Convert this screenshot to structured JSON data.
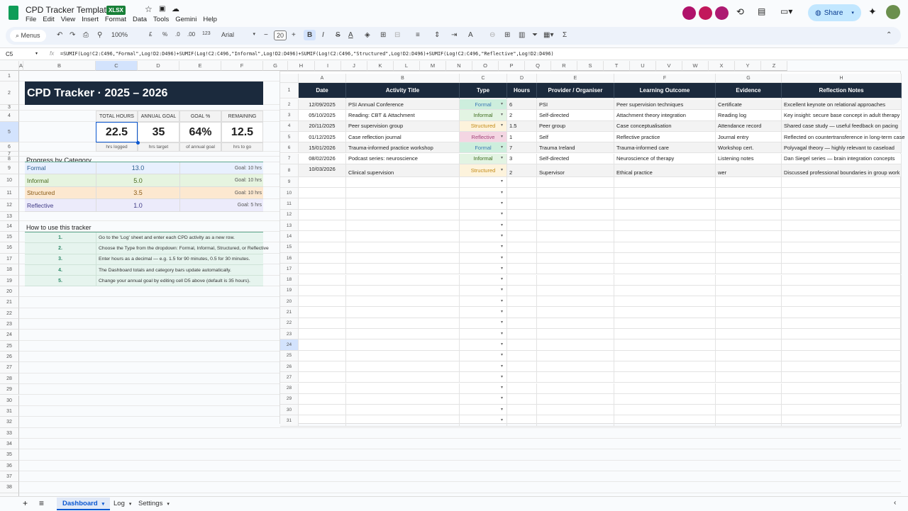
{
  "app": {
    "title": "CPD Tracker Template",
    "badge": "XLSX",
    "menus": [
      "File",
      "Edit",
      "View",
      "Insert",
      "Format",
      "Data",
      "Tools",
      "Gemini",
      "Help"
    ],
    "share": "Share"
  },
  "toolbar": {
    "menus": "Menus",
    "zoom": "100%",
    "currency": "£",
    "percent": "%",
    "dec_less": ".0",
    "dec_more": ".00",
    "format123": "123",
    "font": "Arial",
    "font_size": "20",
    "bold": "B",
    "italic": "I",
    "strike": "S",
    "text_color": "A",
    "sum": "Σ"
  },
  "formula": {
    "cell_ref": "C5",
    "fx": "fx",
    "text": "=SUMIF(Log!C2:C496,\"Formal\",Log!D2:D496)+SUMIF(Log!C2:C496,\"Informal\",Log!D2:D496)+SUMIF(Log!C2:C496,\"Structured\",Log!D2:D496)+SUMIF(Log!C2:C496,\"Reflective\",Log!D2:D496)"
  },
  "columns": [
    "A",
    "B",
    "C",
    "D",
    "E",
    "F",
    "G",
    "H",
    "I",
    "J",
    "K",
    "L",
    "M",
    "N",
    "O",
    "P",
    "Q",
    "R",
    "S",
    "T",
    "U",
    "V",
    "W",
    "X",
    "Y",
    "Z"
  ],
  "dashboard": {
    "title": "CPD Tracker  ·  2025 – 2026",
    "kpis": [
      {
        "head": "TOTAL HOURS",
        "value": "22.5",
        "sub": "hrs logged"
      },
      {
        "head": "ANNUAL GOAL",
        "value": "35",
        "sub": "hrs target"
      },
      {
        "head": "GOAL %",
        "value": "64%",
        "sub": "of annual goal"
      },
      {
        "head": "REMAINING",
        "value": "12.5",
        "sub": "hrs to go"
      }
    ],
    "progress_title": "Progress by Category",
    "categories": [
      {
        "name": "Formal",
        "hours": "13.0",
        "goal": "Goal: 10 hrs",
        "bg": "#e8f0fe",
        "fg": "#2a5d8f"
      },
      {
        "name": "Informal",
        "hours": "5.0",
        "goal": "Goal: 10 hrs",
        "bg": "#e6f4e0",
        "fg": "#4a6b1f"
      },
      {
        "name": "Structured",
        "hours": "3.5",
        "goal": "Goal: 10 hrs",
        "bg": "#fce8d0",
        "fg": "#8a5a14"
      },
      {
        "name": "Reflective",
        "hours": "1.0",
        "goal": "Goal: 5 hrs",
        "bg": "#ecebfb",
        "fg": "#3f3a86"
      }
    ],
    "howto_title": "How to use this tracker",
    "steps": [
      {
        "n": "1.",
        "t": "Go to the 'Log' sheet and enter each CPD activity as a new row."
      },
      {
        "n": "2.",
        "t": "Choose the Type from the dropdown: Formal, Informal, Structured, or Reflective"
      },
      {
        "n": "3.",
        "t": "Enter hours as a decimal — e.g. 1.5 for 90 minutes, 0.5 for 30 minutes."
      },
      {
        "n": "4.",
        "t": "The Dashboard totals and category bars update automatically."
      },
      {
        "n": "5.",
        "t": "Change your annual goal by editing cell D5 above (default is 35 hours)."
      }
    ]
  },
  "log": {
    "headers": [
      "Date",
      "Activity Title",
      "Type",
      "Hours",
      "Provider / Organiser",
      "Learning Outcome",
      "Evidence",
      "Reflection Notes"
    ],
    "type_colors": {
      "Formal": [
        "#cdeedd",
        "#3b78b5"
      ],
      "Informal": [
        "#e3f4e3",
        "#3d6b1c"
      ],
      "Structured": [
        "#fdf3dc",
        "#c48a14"
      ],
      "Reflective": [
        "#f4d6e3",
        "#a5457a"
      ]
    },
    "rows": [
      [
        "12/09/2025",
        "PSI Annual Conference",
        "Formal",
        "6",
        "PSI",
        "Peer supervision techniques",
        "Certificate",
        "Excellent keynote on relational approaches"
      ],
      [
        "05/10/2025",
        "Reading: CBT & Attachment",
        "Informal",
        "2",
        "Self-directed",
        "Attachment theory integration",
        "Reading log",
        "Key insight: secure base concept in adult therapy"
      ],
      [
        "20/11/2025",
        "Peer supervision group",
        "Structured",
        "1.5",
        "Peer group",
        "Case conceptualisation",
        "Attendance record",
        "Shared case study — useful feedback on pacing"
      ],
      [
        "01/12/2025",
        "Case reflection journal",
        "Reflective",
        "1",
        "Self",
        "Reflective practice",
        "Journal entry",
        "Reflected on countertransference in long-term case"
      ],
      [
        "15/01/2026",
        "Trauma-informed practice workshop",
        "Formal",
        "7",
        "Trauma Ireland",
        "Trauma-informed care",
        "Workshop cert.",
        "Polyvagal theory — highly relevant to caseload"
      ],
      [
        "08/02/2026",
        "Podcast series: neuroscience",
        "Informal",
        "3",
        "Self-directed",
        "Neuroscience of therapy",
        "Listening notes",
        "Dan Siegel series — brain integration concepts"
      ],
      [
        "10/03/2026",
        "Clinical supervision",
        "Structured",
        "2",
        "Supervisor",
        "Ethical practice",
        "wer",
        "Discussed professional boundaries in group work"
      ]
    ]
  },
  "sheets": [
    {
      "name": "Dashboard",
      "active": true
    },
    {
      "name": "Log"
    },
    {
      "name": "Settings"
    }
  ],
  "colors": {
    "header_dark": "#1b2a3d",
    "accent": "#0b57d0",
    "share_bg": "#c2e7ff"
  }
}
